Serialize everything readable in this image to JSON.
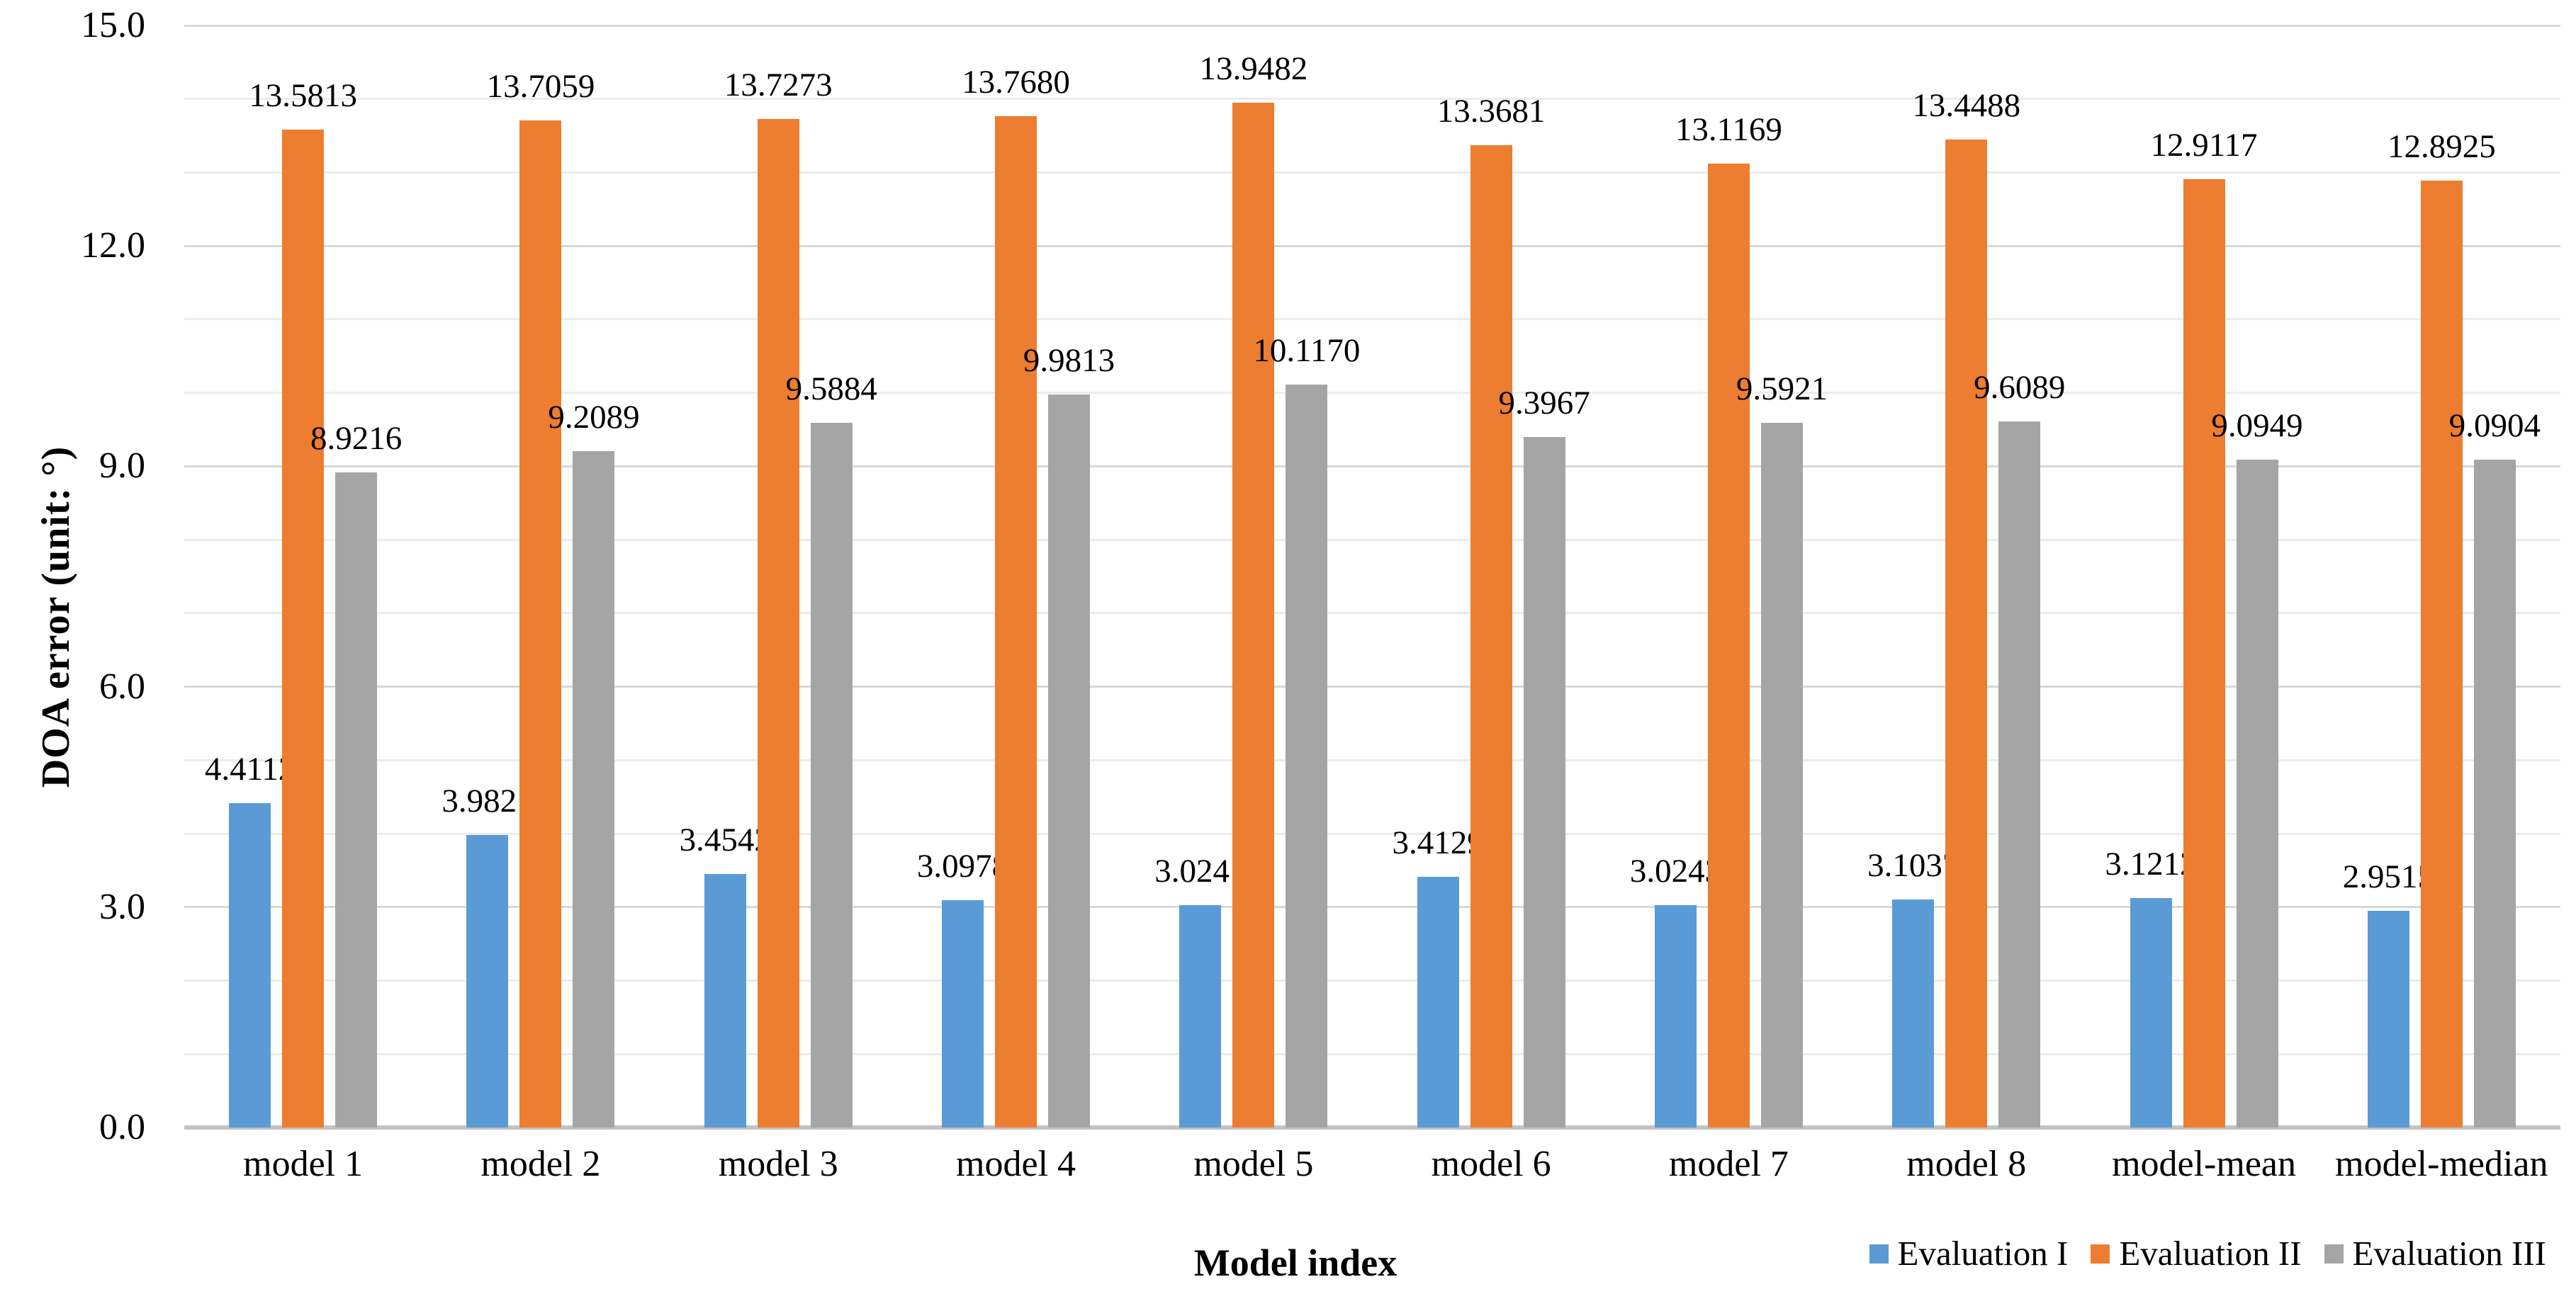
{
  "chart": {
    "y_axis_title": "DOA error (unit: °)",
    "x_axis_title": "Model index"
  },
  "chart_data": {
    "type": "bar",
    "title": "",
    "xlabel": "Model index",
    "ylabel": "DOA error (unit: °)",
    "ylim": [
      0,
      15
    ],
    "y_major_ticks": [
      15.0,
      12.0,
      9.0,
      6.0,
      3.0,
      0.0
    ],
    "y_tick_labels": [
      "15.0",
      "12.0",
      "9.0",
      "6.0",
      "3.0",
      "0.0"
    ],
    "y_minor_gridline_step": 1.0,
    "grid": "horizontal, minor every 1.0, major every 3.0",
    "legend_position": "bottom-right",
    "data_labels": "outside end, 4 decimals",
    "categories": [
      "model 1",
      "model 2",
      "model 3",
      "model 4",
      "model 5",
      "model 6",
      "model 7",
      "model 8",
      "model-mean",
      "model-median"
    ],
    "series": [
      {
        "name": "Evaluation I",
        "color": "#5B9BD5",
        "values": [
          4.4112,
          3.9821,
          3.4542,
          3.0978,
          3.0241,
          3.4129,
          3.0243,
          3.1037,
          3.1212,
          2.9515
        ]
      },
      {
        "name": "Evaluation II",
        "color": "#ED7D31",
        "values": [
          13.5813,
          13.7059,
          13.7273,
          13.768,
          13.9482,
          13.3681,
          13.1169,
          13.4488,
          12.9117,
          12.8925
        ]
      },
      {
        "name": "Evaluation III",
        "color": "#A5A5A5",
        "values": [
          8.9216,
          9.2089,
          9.5884,
          9.9813,
          10.117,
          9.3967,
          9.5921,
          9.6089,
          9.0949,
          9.0904
        ]
      }
    ],
    "colors": {
      "minor_gridline": "#ececec",
      "major_gridline": "#d8d8d8",
      "axis_baseline": "#c3c3c3",
      "text": "#000000"
    }
  }
}
